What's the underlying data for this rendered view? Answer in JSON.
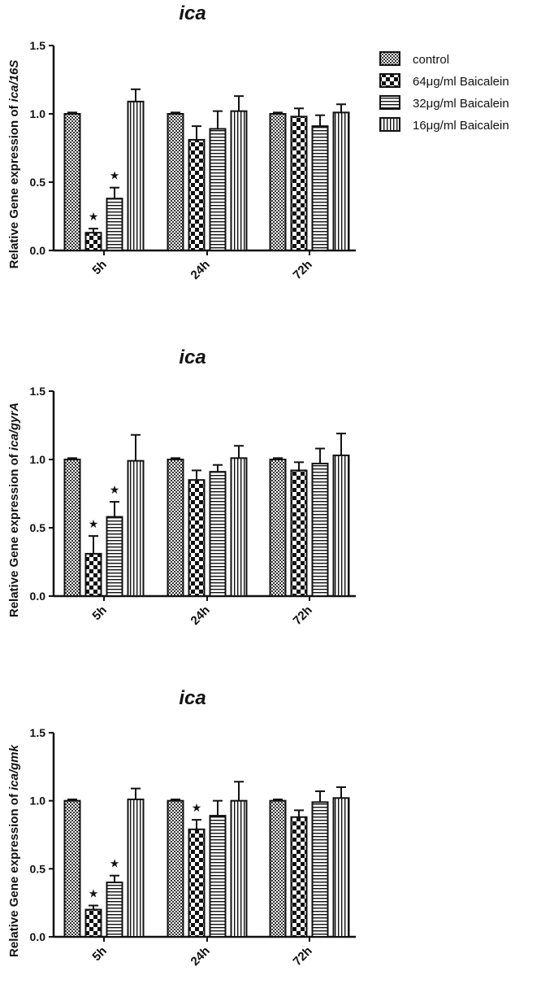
{
  "legend": {
    "items": [
      {
        "label": "control",
        "pattern": "checker"
      },
      {
        "label": "64μg/ml Baicalein",
        "pattern": "bigcheck"
      },
      {
        "label": "32μg/ml Baicalein",
        "pattern": "hlines"
      },
      {
        "label": "16μg/ml Baicalein",
        "pattern": "vlines"
      }
    ]
  },
  "chart_data": [
    {
      "type": "bar",
      "title": "ica",
      "ylabel_prefix": "Relative Gene expression of",
      "ylabel_italic": "ica/16S",
      "categories": [
        "5h",
        "24h",
        "72h"
      ],
      "ylim": [
        0,
        1.5
      ],
      "yticks": [
        "0.0",
        "0.5",
        "1.0",
        "1.5"
      ],
      "series": [
        {
          "name": "control",
          "values": [
            1.0,
            1.0,
            1.0
          ],
          "errors": [
            0.01,
            0.01,
            0.01
          ],
          "significant": [
            false,
            false,
            false
          ]
        },
        {
          "name": "64μg/ml Baicalein",
          "values": [
            0.13,
            0.81,
            0.98
          ],
          "errors": [
            0.03,
            0.1,
            0.06
          ],
          "significant": [
            true,
            false,
            false
          ]
        },
        {
          "name": "32μg/ml Baicalein",
          "values": [
            0.38,
            0.89,
            0.91
          ],
          "errors": [
            0.08,
            0.13,
            0.08
          ],
          "significant": [
            true,
            false,
            false
          ]
        },
        {
          "name": "16μg/ml Baicalein",
          "values": [
            1.09,
            1.02,
            1.01
          ],
          "errors": [
            0.09,
            0.11,
            0.06
          ],
          "significant": [
            false,
            false,
            false
          ]
        }
      ]
    },
    {
      "type": "bar",
      "title": "ica",
      "ylabel_prefix": "Relative Gene expression of",
      "ylabel_italic": "ica/gyrA",
      "categories": [
        "5h",
        "24h",
        "72h"
      ],
      "ylim": [
        0,
        1.5
      ],
      "yticks": [
        "0.0",
        "0.5",
        "1.0",
        "1.5"
      ],
      "series": [
        {
          "name": "control",
          "values": [
            1.0,
            1.0,
            1.0
          ],
          "errors": [
            0.01,
            0.01,
            0.01
          ],
          "significant": [
            false,
            false,
            false
          ]
        },
        {
          "name": "64μg/ml Baicalein",
          "values": [
            0.31,
            0.85,
            0.92
          ],
          "errors": [
            0.13,
            0.07,
            0.06
          ],
          "significant": [
            true,
            false,
            false
          ]
        },
        {
          "name": "32μg/ml Baicalein",
          "values": [
            0.58,
            0.91,
            0.97
          ],
          "errors": [
            0.11,
            0.05,
            0.11
          ],
          "significant": [
            true,
            false,
            false
          ]
        },
        {
          "name": "16μg/ml Baicalein",
          "values": [
            0.99,
            1.01,
            1.03
          ],
          "errors": [
            0.19,
            0.09,
            0.16
          ],
          "significant": [
            false,
            false,
            false
          ]
        }
      ]
    },
    {
      "type": "bar",
      "title": "ica",
      "ylabel_prefix": "Relative Gene expression of",
      "ylabel_italic": "ica/gmk",
      "categories": [
        "5h",
        "24h",
        "72h"
      ],
      "ylim": [
        0,
        1.5
      ],
      "yticks": [
        "0.0",
        "0.5",
        "1.0",
        "1.5"
      ],
      "series": [
        {
          "name": "control",
          "values": [
            1.0,
            1.0,
            1.0
          ],
          "errors": [
            0.01,
            0.01,
            0.01
          ],
          "significant": [
            false,
            false,
            false
          ]
        },
        {
          "name": "64μg/ml Baicalein",
          "values": [
            0.2,
            0.79,
            0.88
          ],
          "errors": [
            0.03,
            0.07,
            0.05
          ],
          "significant": [
            true,
            true,
            false
          ]
        },
        {
          "name": "32μg/ml Baicalein",
          "values": [
            0.4,
            0.89,
            0.99
          ],
          "errors": [
            0.05,
            0.11,
            0.08
          ],
          "significant": [
            true,
            false,
            false
          ]
        },
        {
          "name": "16μg/ml Baicalein",
          "values": [
            1.01,
            1.0,
            1.02
          ],
          "errors": [
            0.08,
            0.14,
            0.08
          ],
          "significant": [
            false,
            false,
            false
          ]
        }
      ]
    }
  ]
}
